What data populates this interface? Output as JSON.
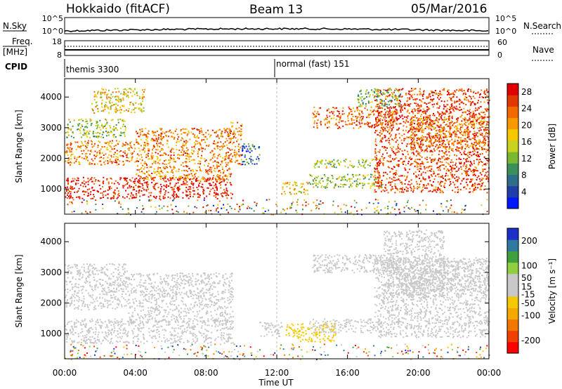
{
  "header": {
    "station": "Hokkaido (fitACF)",
    "beam": "Beam 13",
    "date": "05/Mar/2016"
  },
  "aux_labels": {
    "nsky": "N.Sky",
    "nsearch": "N.Search",
    "freq_line1": "Freq.",
    "freq_line2": "[MHz]",
    "nave": "Nave",
    "cpid": "CPID",
    "nsky_ticks": [
      "10^5",
      "10^0"
    ],
    "nsearch_ticks": [
      "10^5",
      "10^0"
    ],
    "freq_ticks": [
      "18",
      "8"
    ],
    "nave_ticks": [
      "60",
      "0"
    ]
  },
  "cpid_segments": [
    "themis 3300",
    "normal (fast) 151"
  ],
  "colors": {
    "power_scale": [
      "#0018ff",
      "#1f3fa8",
      "#2e6e8a",
      "#3a8f5a",
      "#7ab832",
      "#c8d21e",
      "#f5c800",
      "#f59a00",
      "#f06a00",
      "#e03800",
      "#e00000"
    ],
    "velocity_scale": [
      "#ff0000",
      "#f04000",
      "#f07800",
      "#f5a800",
      "#f5c800",
      "#c8c8c8",
      "#c8c8c8",
      "#90d040",
      "#40a040",
      "#2e7aa0",
      "#1a30c8"
    ]
  },
  "chart_data": [
    {
      "type": "heatmap",
      "panel": "power",
      "xlabel": "Time UT",
      "ylabel": "Slant Range [km]",
      "xlim": [
        0,
        24
      ],
      "ylim": [
        180,
        4600
      ],
      "x_ticks": [
        "00:00",
        "04:00",
        "08:00",
        "12:00",
        "16:00",
        "20:00",
        "00:00"
      ],
      "y_ticks": [
        1000,
        2000,
        3000,
        4000
      ],
      "colorbar_label": "Power [dB]",
      "colorbar_ticks": [
        4,
        8,
        12,
        16,
        20,
        24,
        28
      ],
      "colorbar_range": [
        0,
        30
      ],
      "regions": [
        {
          "t0": 0.0,
          "t1": 9.5,
          "r0": 700,
          "r1": 1400,
          "v": 28
        },
        {
          "t0": 4.0,
          "t1": 9.4,
          "r0": 1300,
          "r1": 3000,
          "v": 22
        },
        {
          "t0": 0.0,
          "t1": 4.0,
          "r0": 1800,
          "r1": 2600,
          "v": 22
        },
        {
          "t0": 0.0,
          "t1": 3.5,
          "r0": 2700,
          "r1": 3300,
          "v": 14
        },
        {
          "t0": 1.5,
          "t1": 4.5,
          "r0": 3500,
          "r1": 4300,
          "v": 18
        },
        {
          "t0": 9.3,
          "t1": 10.0,
          "r0": 1800,
          "r1": 3200,
          "v": 22
        },
        {
          "t0": 10.0,
          "t1": 11.0,
          "r0": 1800,
          "r1": 2500,
          "v": 6
        },
        {
          "t0": 12.2,
          "t1": 13.8,
          "r0": 850,
          "r1": 1250,
          "v": 18
        },
        {
          "t0": 13.8,
          "t1": 18.0,
          "r0": 1050,
          "r1": 1500,
          "v": 14
        },
        {
          "t0": 14.0,
          "t1": 17.6,
          "r0": 1700,
          "r1": 2000,
          "v": 14
        },
        {
          "t0": 14.0,
          "t1": 18.8,
          "r0": 3000,
          "r1": 3700,
          "v": 24
        },
        {
          "t0": 17.5,
          "t1": 24.0,
          "r0": 900,
          "r1": 4300,
          "v": 26
        },
        {
          "t0": 19.5,
          "t1": 24.0,
          "r0": 2300,
          "r1": 3400,
          "v": 22
        },
        {
          "t0": 16.5,
          "t1": 19.0,
          "r0": 3700,
          "r1": 4300,
          "v": 12
        }
      ]
    },
    {
      "type": "heatmap",
      "panel": "velocity",
      "xlabel": "Time UT",
      "ylabel": "Slant Range [km]",
      "xlim": [
        0,
        24
      ],
      "ylim": [
        180,
        4600
      ],
      "x_ticks": [
        "00:00",
        "04:00",
        "08:00",
        "12:00",
        "16:00",
        "20:00",
        "00:00"
      ],
      "y_ticks": [
        1000,
        2000,
        3000,
        4000
      ],
      "colorbar_label": "Velocity [m s⁻¹]",
      "colorbar_ticks": [
        200,
        100,
        50,
        15,
        -15,
        -50,
        -100,
        -200
      ],
      "colorbar_range": [
        -250,
        250
      ],
      "regions": [
        {
          "t0": 0.0,
          "t1": 9.5,
          "r0": 700,
          "r1": 1500,
          "v": 0
        },
        {
          "t0": 3.5,
          "t1": 9.5,
          "r0": 1400,
          "r1": 3000,
          "v": 0
        },
        {
          "t0": 0.0,
          "t1": 3.5,
          "r0": 1800,
          "r1": 3300,
          "v": 0
        },
        {
          "t0": 11.0,
          "t1": 12.3,
          "r0": 900,
          "r1": 1400,
          "v": 40
        },
        {
          "t0": 12.5,
          "t1": 15.3,
          "r0": 750,
          "r1": 1350,
          "v": -40
        },
        {
          "t0": 13.8,
          "t1": 18.0,
          "r0": 1050,
          "r1": 1500,
          "v": 40
        },
        {
          "t0": 14.0,
          "t1": 18.8,
          "r0": 3000,
          "r1": 3600,
          "v": 0
        },
        {
          "t0": 17.5,
          "t1": 24.0,
          "r0": 900,
          "r1": 3500,
          "v": 0
        },
        {
          "t0": 18.0,
          "t1": 21.5,
          "r0": 2200,
          "r1": 4400,
          "v": 40
        },
        {
          "t0": 19.0,
          "t1": 24.0,
          "r0": 2400,
          "r1": 3400,
          "v": 20
        }
      ]
    }
  ]
}
